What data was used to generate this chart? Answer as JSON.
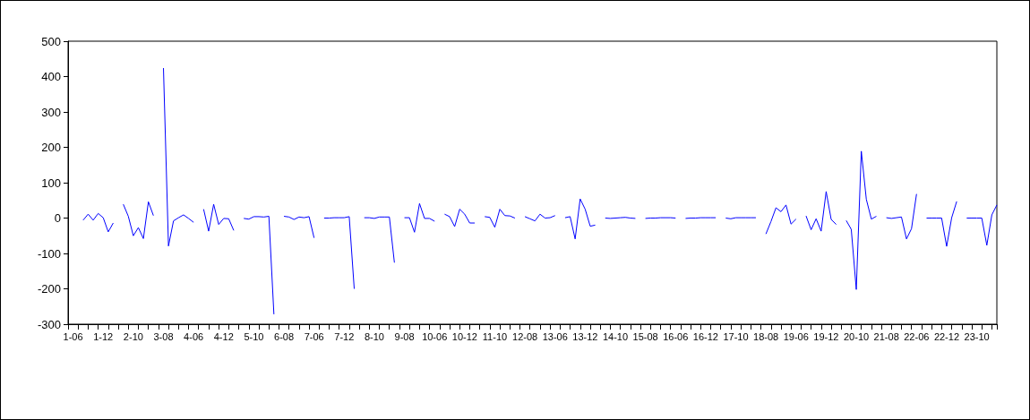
{
  "chart_data": {
    "type": "line",
    "categories": [
      null,
      "1-06",
      null,
      null,
      null,
      null,
      null,
      "1-12",
      null,
      null,
      null,
      null,
      null,
      "2-10",
      null,
      null,
      null,
      null,
      null,
      "3-08",
      null,
      null,
      null,
      null,
      null,
      "4-06",
      null,
      null,
      null,
      null,
      null,
      "4-12",
      null,
      null,
      null,
      null,
      null,
      "5-10",
      null,
      null,
      null,
      null,
      null,
      "6-08",
      null,
      null,
      null,
      null,
      null,
      "7-06",
      null,
      null,
      null,
      null,
      null,
      "7-12",
      null,
      null,
      null,
      null,
      null,
      "8-10",
      null,
      null,
      null,
      null,
      null,
      "9-08",
      null,
      null,
      null,
      null,
      null,
      "10-06",
      null,
      null,
      null,
      null,
      null,
      "10-12",
      null,
      null,
      null,
      null,
      null,
      "11-10",
      null,
      null,
      null,
      null,
      null,
      "12-08",
      null,
      null,
      null,
      null,
      null,
      "13-06",
      null,
      null,
      null,
      null,
      null,
      "13-12",
      null,
      null,
      null,
      null,
      null,
      "14-10",
      null,
      null,
      null,
      null,
      null,
      "15-08",
      null,
      null,
      null,
      null,
      null,
      "16-06",
      null,
      null,
      null,
      null,
      null,
      "16-12",
      null,
      null,
      null,
      null,
      null,
      "17-10",
      null,
      null,
      null,
      null,
      null,
      "18-08",
      null,
      null,
      null,
      null,
      null,
      "19-06",
      null,
      null,
      null,
      null,
      null,
      "19-12",
      null,
      null,
      null,
      null,
      null,
      "20-10",
      null,
      null,
      null,
      null,
      null,
      "21-08",
      null,
      null,
      null,
      null,
      null,
      "22-06",
      null,
      null,
      null,
      null,
      null,
      "22-12",
      null,
      null,
      null,
      null,
      null,
      "23-10",
      null,
      null,
      null,
      null
    ],
    "series": [
      {
        "color": "#0000ff",
        "values": [
          null,
          null,
          null,
          -6,
          11,
          -6,
          13,
          1,
          -39,
          -14,
          null,
          39,
          5,
          -50,
          -27,
          -58,
          46,
          7,
          null,
          424,
          -79,
          -8,
          1,
          9,
          -1,
          -12,
          null,
          25,
          -37,
          39,
          -18,
          -1,
          -2,
          -35,
          null,
          -1,
          -3,
          4,
          4,
          3,
          5,
          -272,
          null,
          5,
          3,
          -4,
          3,
          1,
          4,
          -56,
          null,
          0,
          0,
          1,
          1,
          1,
          4,
          -200,
          null,
          1,
          1,
          -1,
          3,
          3,
          3,
          -126,
          null,
          1,
          1,
          -40,
          41,
          -1,
          -1,
          -9,
          null,
          11,
          4,
          -24,
          25,
          11,
          -14,
          -14,
          null,
          4,
          2,
          -26,
          25,
          7,
          6,
          0,
          null,
          4,
          -2,
          -8,
          11,
          0,
          1,
          7,
          null,
          1,
          4,
          -59,
          54,
          25,
          -23,
          -20,
          null,
          0,
          -1,
          0,
          1,
          2,
          0,
          -1,
          null,
          -1,
          0,
          0,
          1,
          1,
          1,
          0,
          null,
          -1,
          0,
          0,
          1,
          1,
          1,
          1,
          null,
          0,
          -2,
          1,
          1,
          1,
          1,
          1,
          null,
          -45,
          -10,
          29,
          18,
          37,
          -17,
          -3,
          null,
          6,
          -33,
          -2,
          -37,
          75,
          -4,
          -18,
          null,
          -7,
          -32,
          -202,
          189,
          53,
          -3,
          5,
          null,
          1,
          -1,
          1,
          3,
          -59,
          -30,
          68,
          null,
          0,
          0,
          0,
          0,
          -80,
          1,
          47,
          null,
          0,
          0,
          0,
          0,
          -77,
          9,
          37
        ]
      }
    ],
    "ylim": [
      -300,
      500
    ],
    "yticks": [
      -300,
      -200,
      -100,
      0,
      100,
      200,
      300,
      400,
      500
    ],
    "grid": false,
    "marker": "none",
    "line_style": "solid"
  }
}
